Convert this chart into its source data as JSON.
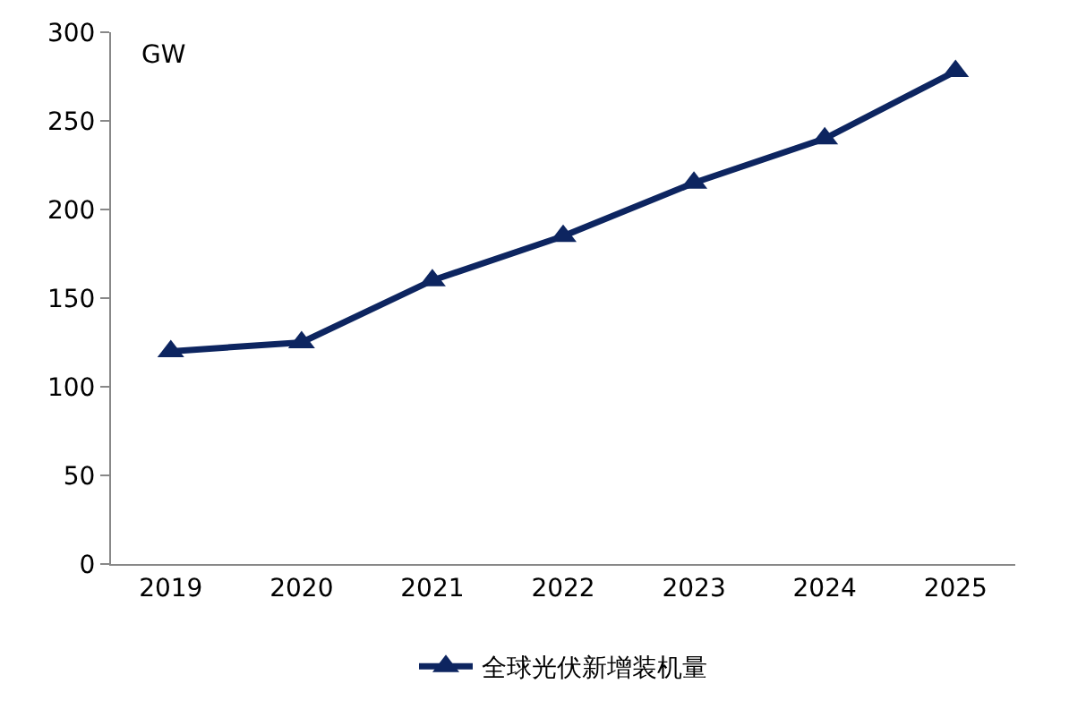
{
  "chart_data": {
    "type": "line",
    "ylabel": "GW",
    "categories": [
      "2019",
      "2020",
      "2021",
      "2022",
      "2023",
      "2024",
      "2025"
    ],
    "series": [
      {
        "name": "全球光伏新增装机量",
        "color": "#0d2560",
        "values": [
          120,
          125,
          160,
          185,
          215,
          240,
          278
        ]
      }
    ],
    "ylim": [
      0,
      300
    ],
    "yticks": [
      0,
      50,
      100,
      150,
      200,
      250,
      300
    ],
    "grid": false,
    "legend": "bottom",
    "marker": "triangle",
    "line_style": "solid"
  }
}
